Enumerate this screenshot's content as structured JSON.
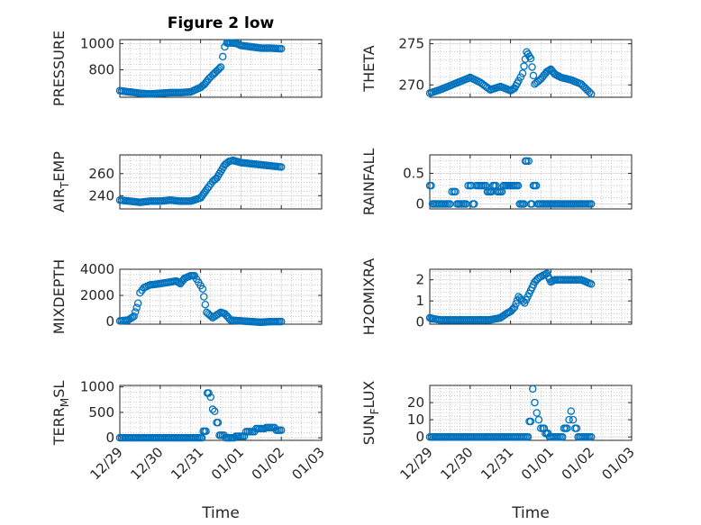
{
  "figure": {
    "title": "Figure 2 low",
    "marker_color": "#0072BD"
  },
  "x_axis": {
    "label": "Time",
    "tick_labels": [
      "12/29",
      "12/30",
      "12/31",
      "01/01",
      "01/02",
      "01/03"
    ],
    "tick_days": [
      0,
      1,
      2,
      3,
      4,
      5
    ],
    "range_days": [
      0,
      5
    ]
  },
  "chart_data": [
    {
      "type": "scatter",
      "ylabel": "PRESSURE",
      "ylim": [
        590,
        1030
      ],
      "yticks": [
        800,
        1000
      ],
      "ytick_labels": [
        "800",
        "1000"
      ],
      "x": [
        0.0,
        0.25,
        0.5,
        0.75,
        1.0,
        1.25,
        1.5,
        1.75,
        2.0,
        2.1,
        2.2,
        2.3,
        2.4,
        2.5,
        2.55,
        2.6,
        2.65,
        2.75,
        2.9,
        3.0,
        3.25,
        3.5,
        3.75,
        4.0
      ],
      "y": [
        640,
        630,
        620,
        615,
        620,
        625,
        625,
        630,
        665,
        690,
        730,
        760,
        790,
        820,
        900,
        975,
        1005,
        1005,
        1000,
        985,
        975,
        965,
        965,
        960
      ]
    },
    {
      "type": "scatter",
      "ylabel": "THETA",
      "ylim": [
        268.5,
        275.5
      ],
      "yticks": [
        270,
        275
      ],
      "ytick_labels": [
        "270",
        "275"
      ],
      "x": [
        0.0,
        0.25,
        0.5,
        0.75,
        1.0,
        1.25,
        1.5,
        1.75,
        2.0,
        2.1,
        2.2,
        2.3,
        2.4,
        2.5,
        2.6,
        2.75,
        2.9,
        3.0,
        3.1,
        3.25,
        3.5,
        3.75,
        4.0
      ],
      "y": [
        269.0,
        269.4,
        269.9,
        270.4,
        270.9,
        270.3,
        269.4,
        269.8,
        269.3,
        269.6,
        270.5,
        271.4,
        274.0,
        273.2,
        270.1,
        270.7,
        271.6,
        271.9,
        271.3,
        270.9,
        270.6,
        270.1,
        268.9
      ]
    },
    {
      "type": "scatter",
      "ylabel": "AIR_TEMP",
      "ylim": [
        228,
        277
      ],
      "yticks": [
        240,
        260
      ],
      "ytick_labels": [
        "240",
        "260"
      ],
      "x": [
        0.0,
        0.25,
        0.5,
        0.75,
        1.0,
        1.25,
        1.5,
        1.75,
        2.0,
        2.1,
        2.2,
        2.3,
        2.4,
        2.5,
        2.6,
        2.7,
        2.8,
        2.9,
        3.0,
        3.25,
        3.5,
        3.75,
        4.0
      ],
      "y": [
        236,
        235,
        234,
        235,
        235,
        236,
        235,
        235,
        238,
        243,
        248,
        253,
        256,
        262,
        268,
        271,
        272,
        271,
        270,
        269,
        268,
        267,
        266
      ]
    },
    {
      "type": "scatter",
      "ylabel": "RAINFALL",
      "ylim": [
        -0.08,
        0.8
      ],
      "yticks": [
        0,
        0.5
      ],
      "ytick_labels": [
        "0",
        "0.5"
      ],
      "x": [
        0.0,
        0.1,
        0.25,
        0.5,
        0.6,
        0.75,
        0.9,
        1.0,
        1.1,
        1.2,
        1.35,
        1.5,
        1.6,
        1.75,
        1.9,
        2.0,
        2.15,
        2.3,
        2.4,
        2.45,
        2.5,
        2.6,
        2.75,
        3.0,
        3.25,
        3.5,
        3.75,
        4.0
      ],
      "y": [
        0.3,
        0.0,
        0.0,
        0.0,
        0.2,
        0.0,
        0.0,
        0.3,
        0.0,
        0.3,
        0.3,
        0.2,
        0.3,
        0.2,
        0.3,
        0.3,
        0.3,
        0.0,
        0.7,
        0.7,
        0.0,
        0.3,
        0.0,
        0.0,
        0.0,
        0.0,
        0.0,
        0.0
      ]
    },
    {
      "type": "scatter",
      "ylabel": "MIXDEPTH",
      "ylim": [
        -200,
        4000
      ],
      "yticks": [
        0,
        2000,
        4000
      ],
      "ytick_labels": [
        "0",
        "2000",
        "4000"
      ],
      "x": [
        0.0,
        0.2,
        0.35,
        0.45,
        0.5,
        0.6,
        0.75,
        1.0,
        1.2,
        1.4,
        1.5,
        1.6,
        1.75,
        1.85,
        1.95,
        2.05,
        2.15,
        2.3,
        2.5,
        2.6,
        2.75,
        3.0,
        3.25,
        3.5,
        3.75,
        4.0
      ],
      "y": [
        50,
        100,
        400,
        1400,
        2200,
        2600,
        2800,
        2900,
        3000,
        3100,
        2900,
        3300,
        3500,
        3500,
        3000,
        2500,
        700,
        300,
        700,
        600,
        100,
        50,
        0,
        -50,
        0,
        0
      ]
    },
    {
      "type": "scatter",
      "ylabel": "H2OMIXRA",
      "ylim": [
        -0.1,
        2.5
      ],
      "yticks": [
        0,
        1,
        2
      ],
      "ytick_labels": [
        "0",
        "1",
        "2"
      ],
      "x": [
        0.0,
        0.1,
        0.25,
        0.5,
        0.75,
        1.0,
        1.25,
        1.5,
        1.75,
        1.9,
        2.0,
        2.1,
        2.2,
        2.35,
        2.5,
        2.6,
        2.7,
        2.8,
        2.9,
        3.0,
        3.1,
        3.25,
        3.5,
        3.75,
        4.0
      ],
      "y": [
        0.2,
        0.15,
        0.1,
        0.1,
        0.1,
        0.1,
        0.1,
        0.1,
        0.2,
        0.4,
        0.5,
        0.7,
        1.2,
        0.9,
        1.5,
        1.9,
        2.1,
        2.2,
        2.3,
        1.9,
        2.0,
        2.0,
        2.0,
        2.0,
        1.8
      ]
    },
    {
      "type": "scatter",
      "ylabel": "TERR_MSL",
      "ylim": [
        -50,
        1030
      ],
      "yticks": [
        0,
        500,
        1000
      ],
      "ytick_labels": [
        "0",
        "500",
        "1000"
      ],
      "x": [
        0.0,
        0.25,
        0.5,
        0.75,
        1.0,
        1.25,
        1.5,
        1.75,
        2.0,
        2.1,
        2.2,
        2.25,
        2.3,
        2.35,
        2.4,
        2.5,
        2.75,
        3.0,
        3.25,
        3.5,
        3.75,
        4.0
      ],
      "y": [
        0,
        0,
        0,
        0,
        0,
        0,
        0,
        0,
        0,
        130,
        880,
        800,
        560,
        520,
        300,
        50,
        0,
        30,
        120,
        180,
        200,
        150
      ]
    },
    {
      "type": "scatter",
      "ylabel": "SUN_FLUX",
      "ylim": [
        -2,
        30
      ],
      "yticks": [
        0,
        10,
        20
      ],
      "ytick_labels": [
        "0",
        "10",
        "20"
      ],
      "x": [
        0.0,
        0.25,
        0.5,
        0.75,
        1.0,
        1.25,
        1.5,
        1.75,
        2.0,
        2.4,
        2.5,
        2.55,
        2.6,
        2.65,
        2.7,
        2.8,
        2.9,
        3.0,
        3.25,
        3.4,
        3.45,
        3.5,
        3.55,
        3.6,
        3.75,
        4.0
      ],
      "y": [
        0,
        0,
        0,
        0,
        0,
        0,
        0,
        0,
        0,
        0,
        9,
        28,
        20,
        14,
        10,
        5,
        2,
        0,
        0,
        5,
        10,
        15,
        10,
        5,
        0,
        0
      ]
    }
  ]
}
